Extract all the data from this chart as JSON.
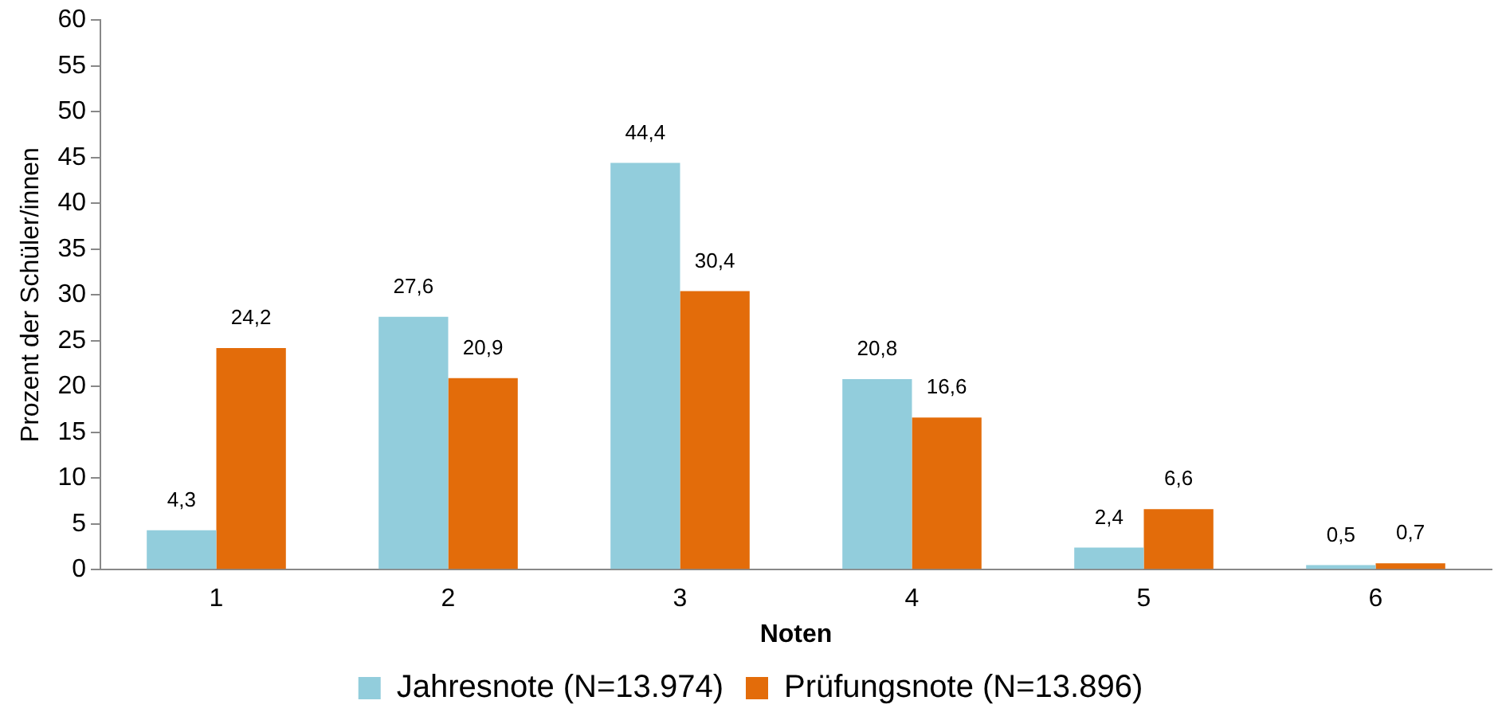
{
  "chart_data": {
    "type": "bar",
    "xlabel": "Noten",
    "ylabel": "Prozent der Schüler/innen",
    "categories": [
      "1",
      "2",
      "3",
      "4",
      "5",
      "6"
    ],
    "series": [
      {
        "name": "Jahresnote (N=13.974)",
        "color": "#92cddc",
        "values": [
          4.3,
          27.6,
          44.4,
          20.8,
          2.4,
          0.5
        ],
        "value_labels": [
          "4,3",
          "27,6",
          "44,4",
          "20,8",
          "2,4",
          "0,5"
        ]
      },
      {
        "name": "Prüfungsnote (N=13.896)",
        "color": "#e36c0a",
        "values": [
          24.2,
          20.9,
          30.4,
          16.6,
          6.6,
          0.7
        ],
        "value_labels": [
          "24,2",
          "20,9",
          "30,4",
          "16,6",
          "6,6",
          "0,7"
        ]
      }
    ],
    "ylim": [
      0,
      60
    ],
    "yticks": [
      0,
      5,
      10,
      15,
      20,
      25,
      30,
      35,
      40,
      45,
      50,
      55,
      60
    ],
    "grid": false,
    "legend": "bottom"
  }
}
